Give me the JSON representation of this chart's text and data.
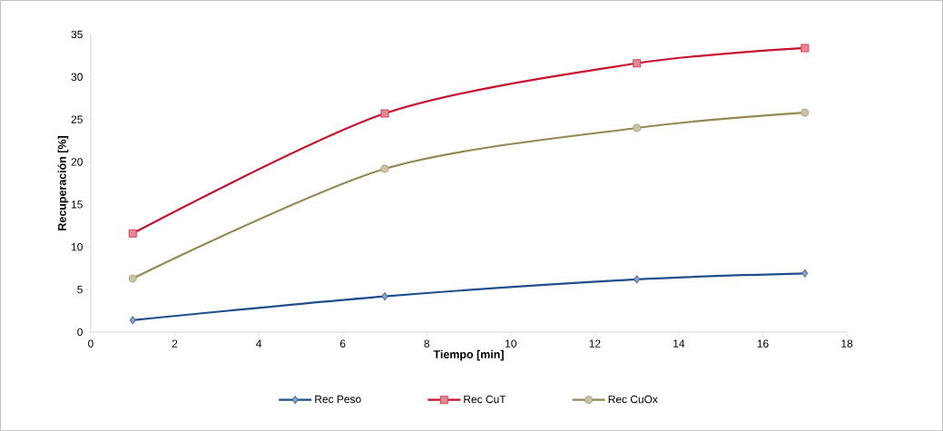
{
  "chart_data": {
    "type": "line",
    "xlabel": "Tiempo  [min]",
    "ylabel": "Recuperación  [%]",
    "xlim": [
      0,
      18
    ],
    "xticks": [
      0,
      2,
      4,
      6,
      8,
      10,
      12,
      14,
      16,
      18
    ],
    "ylim": [
      0,
      35
    ],
    "yticks": [
      0,
      5,
      10,
      15,
      20,
      25,
      30,
      35
    ],
    "grid": false,
    "legend": "bottom",
    "line_style": "solid",
    "series": [
      {
        "name": "Rec Peso",
        "color": "#1f4e8c",
        "marker": "diamond",
        "x": [
          1,
          7,
          13,
          17
        ],
        "values": [
          1.4,
          4.2,
          6.2,
          6.9
        ]
      },
      {
        "name": "Rec CuT",
        "color": "#c8102e",
        "marker": "square",
        "x": [
          1,
          7,
          13,
          17
        ],
        "values": [
          11.6,
          25.7,
          31.6,
          33.4
        ]
      },
      {
        "name": "Rec CuOx",
        "color": "#938953",
        "marker": "circle",
        "x": [
          1,
          7,
          13,
          17
        ],
        "values": [
          6.3,
          19.2,
          24.0,
          25.8
        ]
      }
    ]
  }
}
